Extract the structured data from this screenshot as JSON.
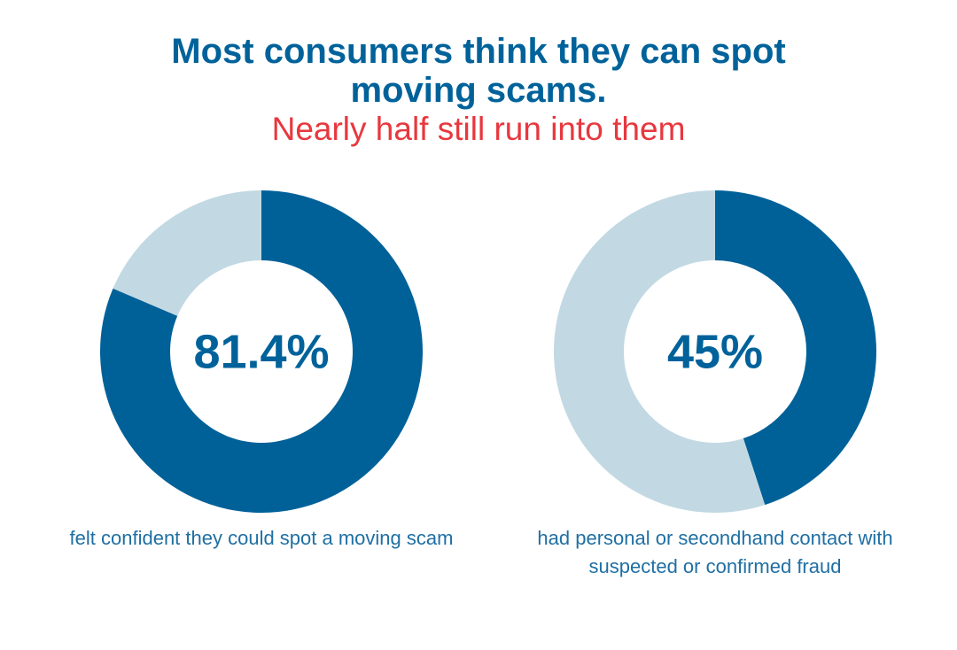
{
  "title": "Most consumers think they can spot moving scams.",
  "subtitle": "Nearly half still run into them",
  "chart_data": [
    {
      "type": "donut",
      "values": [
        81.4,
        18.6
      ],
      "value_labels": [
        "81.4%",
        null
      ],
      "colors": [
        "#006199",
        "#c2d9e3"
      ],
      "caption": "felt confident they could spot a moving scam"
    },
    {
      "type": "donut",
      "values": [
        45,
        55
      ],
      "value_labels": [
        "45%",
        null
      ],
      "colors": [
        "#006199",
        "#c2d9e3"
      ],
      "caption": "had personal or secondhand contact with suspected or confirmed fraud"
    }
  ]
}
